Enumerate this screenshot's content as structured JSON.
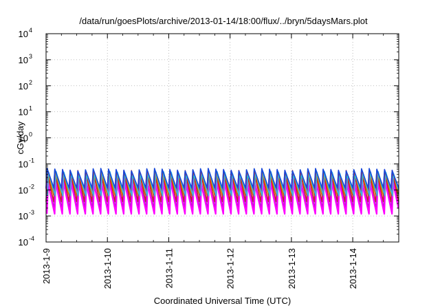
{
  "chart_data": {
    "type": "line",
    "title": "/data/run/goesPlots/archive/2013-01-14/18:00/flux/../bryn/5daysMars.plot",
    "xlabel": "Coordinated Universal Time (UTC)",
    "ylabel": "cGy/day",
    "yscale": "log",
    "ylim": [
      0.0001,
      10000
    ],
    "y_tick_base": "10",
    "y_ticks": [
      {
        "exp": "-4",
        "value": 0.0001
      },
      {
        "exp": "-3",
        "value": 0.001
      },
      {
        "exp": "-2",
        "value": 0.01
      },
      {
        "exp": "-1",
        "value": 0.1
      },
      {
        "exp": "0",
        "value": 1
      },
      {
        "exp": "1",
        "value": 10
      },
      {
        "exp": "2",
        "value": 100
      },
      {
        "exp": "3",
        "value": 1000
      },
      {
        "exp": "4",
        "value": 10000
      }
    ],
    "xlim": [
      "2013-01-09",
      "2013-01-14T18:00"
    ],
    "x_ticks": [
      "2013-1-9",
      "2013-1-10",
      "2013-1-11",
      "2013-1-12",
      "2013-1-13",
      "2013-1-14"
    ],
    "grid": true,
    "grid_style": "dotted",
    "cycles_per_day": 8,
    "series": [
      {
        "color": "#2040e0",
        "peak": 0.055,
        "trough": 0.011
      },
      {
        "color": "#00b0c0",
        "peak": 0.04,
        "trough": 0.008
      },
      {
        "color": "#208040",
        "peak": 0.03,
        "trough": 0.005
      },
      {
        "color": "#e08000",
        "peak": 0.035,
        "trough": 0.004
      },
      {
        "color": "#d02020",
        "peak": 0.05,
        "trough": 0.0035
      },
      {
        "color": "#a020c0",
        "peak": 0.025,
        "trough": 0.002
      },
      {
        "color": "#ff00ff",
        "peak": 0.018,
        "trough": 0.0012
      },
      {
        "color": "#30c0e0",
        "peak": 0.045,
        "trough": 0.006
      },
      {
        "color": "#1848d8",
        "peak": 0.06,
        "trough": 0.012
      }
    ]
  }
}
